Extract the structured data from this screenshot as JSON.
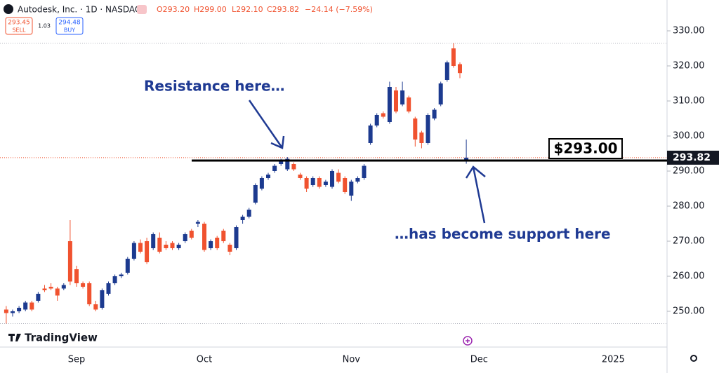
{
  "chart_data": {
    "type": "candlestick",
    "title": "Autodesk, Inc. · 1D · NASDAQ",
    "quote": [
      "O293.20",
      "H299.00",
      "L292.10",
      "C293.82",
      "−24.14 (−7.59%)"
    ],
    "sell_price": "293.45",
    "sell_label": "SELL",
    "spread": "1.03",
    "buy_price": "294.48",
    "buy_label": "BUY",
    "brand": "TradingView",
    "annotations": [
      "Resistance here…",
      "…has become support here"
    ],
    "support_level": {
      "value": 293,
      "label": "$293.00"
    },
    "last_price": {
      "value": 293.82,
      "label": "293.82"
    },
    "up_color": "#1c3a8f",
    "down_color": "#f0522f",
    "categories": [
      null,
      null,
      null,
      null,
      null,
      null,
      null,
      null,
      null,
      null,
      null,
      "Sep",
      null,
      null,
      null,
      null,
      null,
      null,
      null,
      null,
      null,
      null,
      null,
      null,
      null,
      null,
      null,
      null,
      null,
      null,
      null,
      "Oct",
      null,
      null,
      null,
      null,
      null,
      null,
      null,
      null,
      null,
      null,
      null,
      null,
      null,
      null,
      null,
      null,
      null,
      null,
      null,
      null,
      null,
      null,
      "Nov",
      null,
      null,
      null,
      null,
      null,
      null,
      null,
      null,
      null,
      null,
      null,
      null,
      null,
      null,
      null,
      null,
      null,
      null,
      null,
      "Dec",
      null,
      null,
      null,
      null,
      null,
      null,
      null,
      null,
      null,
      null,
      null,
      null,
      null,
      null,
      null,
      null,
      null,
      null,
      null,
      null,
      "2025"
    ],
    "open": [
      250.5,
      249.5,
      250,
      250.5,
      252.5,
      253,
      256.5,
      257,
      256.5,
      256.5,
      270,
      262,
      258,
      258,
      252,
      251,
      255,
      258,
      260,
      261,
      265,
      269.5,
      270,
      268,
      271,
      269,
      269.5,
      268,
      270,
      273,
      275,
      275,
      268,
      271,
      273,
      269,
      268,
      276,
      277,
      281,
      285,
      288,
      290,
      292,
      290.5,
      292,
      289,
      288,
      286,
      288,
      286,
      285.5,
      289.5,
      288,
      283,
      287,
      288,
      298,
      303,
      306.5,
      304,
      313,
      309,
      311,
      305,
      301,
      298,
      305,
      309,
      316,
      325,
      320.5,
      293.2,
      null,
      null,
      null,
      null,
      null,
      null,
      null,
      null,
      null,
      null,
      null,
      null,
      null,
      null,
      null,
      null,
      null,
      null,
      null,
      null,
      null,
      null,
      null
    ],
    "high": [
      251.5,
      250.5,
      251.5,
      253,
      253,
      255.5,
      257.5,
      258,
      257,
      258,
      276,
      263,
      258.5,
      258.5,
      253,
      256.5,
      258.5,
      260.5,
      261,
      265.5,
      270,
      270.5,
      271,
      272.5,
      272.5,
      270,
      270,
      269.5,
      272.5,
      273.5,
      276,
      275.5,
      270.5,
      271.5,
      273.5,
      269.5,
      274.5,
      277.5,
      279.5,
      286.5,
      288.5,
      289.5,
      292,
      293.5,
      294,
      292.5,
      289.5,
      288.5,
      288.5,
      288.5,
      287.5,
      290.5,
      290.5,
      288.5,
      287.5,
      288.5,
      292,
      303.5,
      306.5,
      307,
      315.5,
      314,
      315.5,
      311.5,
      305.5,
      301.5,
      306.5,
      308,
      315.5,
      321.5,
      326.5,
      321,
      299,
      null,
      null,
      null,
      null,
      null,
      null,
      null,
      null,
      null,
      null,
      null,
      null,
      null,
      null,
      null,
      null,
      null,
      null,
      null,
      null,
      null,
      null,
      null
    ],
    "low": [
      246.5,
      248.5,
      249.5,
      250,
      250,
      252.5,
      255.5,
      256,
      253,
      256,
      257.5,
      257,
      256.5,
      251.5,
      250,
      250.5,
      254.5,
      257.5,
      259.5,
      260.5,
      264.5,
      266.5,
      263.5,
      267.5,
      266.5,
      267.5,
      267.5,
      267.5,
      269.5,
      270.5,
      274,
      267,
      267.5,
      267.5,
      269.5,
      266,
      267.5,
      275,
      276.5,
      280.5,
      284.5,
      287.5,
      289.5,
      291.5,
      290,
      290,
      287.5,
      284,
      285.5,
      285,
      285.5,
      285,
      286.5,
      283.5,
      281.5,
      286.5,
      287.5,
      297.5,
      302.5,
      305,
      303.5,
      306.5,
      308.5,
      306.5,
      297,
      296.5,
      297.5,
      304.5,
      308.5,
      315.5,
      319.5,
      316.5,
      292.1,
      null,
      null,
      null,
      null,
      null,
      null,
      null,
      null,
      null,
      null,
      null,
      null,
      null,
      null,
      null,
      null,
      null,
      null,
      null,
      null,
      null,
      null,
      null
    ],
    "close": [
      249.5,
      250,
      251,
      252.5,
      250.5,
      255,
      256,
      256.5,
      254.5,
      257.5,
      258.5,
      258,
      257,
      252,
      250.5,
      256,
      258,
      260,
      260.5,
      265,
      269.5,
      267,
      264,
      272,
      267,
      268,
      268,
      269,
      272,
      271,
      275.5,
      267.5,
      270,
      268,
      270,
      267,
      274,
      277,
      279,
      286,
      288,
      289,
      291.5,
      293,
      293.5,
      290.5,
      288,
      285,
      288,
      285.5,
      287,
      290,
      287,
      284,
      287,
      288,
      291.5,
      303,
      306,
      305.5,
      314,
      307,
      313,
      307,
      299,
      298,
      306,
      307.5,
      315,
      321,
      320,
      317.96,
      293.82,
      null,
      null,
      null,
      null,
      null,
      null,
      null,
      null,
      null,
      null,
      null,
      null,
      null,
      null,
      null,
      null,
      null,
      null,
      null,
      null,
      null,
      null,
      null
    ],
    "ylim": [
      239.8,
      338.8
    ],
    "yticks": [
      {
        "value": 250,
        "label": "250.00"
      },
      {
        "value": 260,
        "label": "260.00"
      },
      {
        "value": 270,
        "label": "270.00"
      },
      {
        "value": 280,
        "label": "280.00"
      },
      {
        "value": 290,
        "label": "290.00"
      },
      {
        "value": 300,
        "label": "300.00"
      },
      {
        "value": 310,
        "label": "310.00"
      },
      {
        "value": 320,
        "label": "320.00"
      },
      {
        "value": 330,
        "label": "330.00"
      }
    ]
  }
}
